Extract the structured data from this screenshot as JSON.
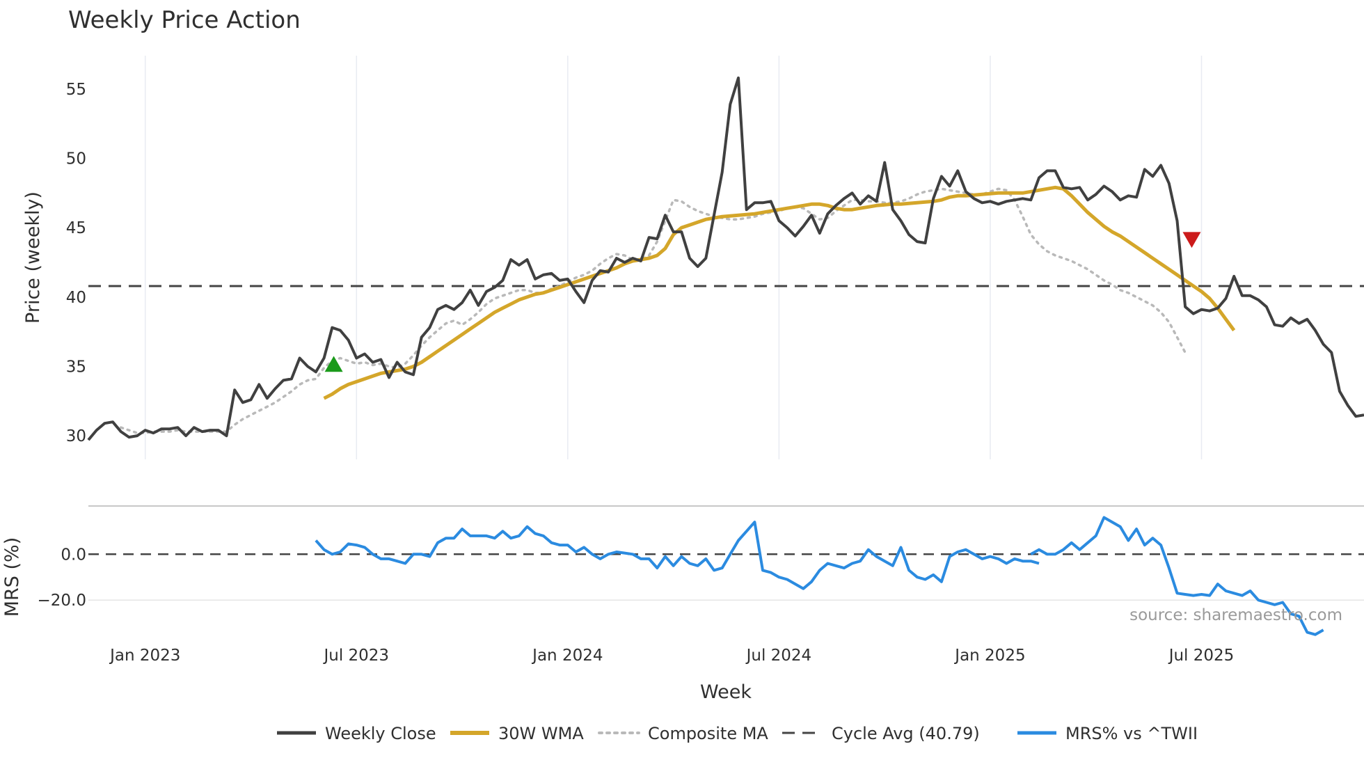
{
  "chart_data": {
    "title": "Weekly Price Action",
    "type": "line",
    "x_axis": {
      "label": "Week",
      "tick_labels": [
        "Jan 2023",
        "Jul 2023",
        "Jan 2024",
        "Jul 2024",
        "Jan 2025",
        "Jul 2025"
      ],
      "tick_weeks": [
        0,
        26,
        52,
        78,
        104,
        130
      ],
      "range_weeks": [
        -7,
        150
      ]
    },
    "price_panel": {
      "ylabel": "Price (weekly)",
      "y_ticks": [
        "30",
        "35",
        "40",
        "45",
        "50",
        "55"
      ],
      "y_tick_values": [
        30,
        35,
        40,
        45,
        50,
        55
      ],
      "ylim": [
        28.3,
        57.4
      ],
      "series": {
        "weekly_close": {
          "name": "Weekly Close",
          "color": "#404040",
          "start_week": -7,
          "values": [
            29.7,
            30.4,
            30.9,
            31.0,
            30.3,
            29.9,
            30.0,
            30.4,
            30.2,
            30.5,
            30.5,
            30.6,
            30.0,
            30.6,
            30.3,
            30.4,
            30.4,
            30.0,
            33.3,
            32.4,
            32.6,
            33.7,
            32.7,
            33.4,
            34.0,
            34.1,
            35.6,
            35.0,
            34.6,
            35.6,
            37.8,
            37.6,
            36.9,
            35.6,
            35.9,
            35.3,
            35.5,
            34.2,
            35.3,
            34.6,
            34.4,
            37.1,
            37.8,
            39.1,
            39.4,
            39.1,
            39.6,
            40.5,
            39.4,
            40.4,
            40.7,
            41.2,
            42.7,
            42.3,
            42.7,
            41.3,
            41.6,
            41.7,
            41.2,
            41.3,
            40.4,
            39.6,
            41.2,
            41.9,
            41.8,
            42.8,
            42.5,
            42.8,
            42.6,
            44.3,
            44.2,
            45.9,
            44.7,
            44.7,
            42.8,
            42.2,
            42.8,
            45.9,
            49.0,
            53.9,
            55.8,
            46.3,
            46.8,
            46.8,
            46.9,
            45.5,
            45.0,
            44.4,
            45.1,
            45.9,
            44.6,
            46.0,
            46.6,
            47.1,
            47.5,
            46.7,
            47.3,
            46.9,
            49.7,
            46.3,
            45.5,
            44.5,
            44.0,
            43.9,
            47.1,
            48.7,
            48.0,
            49.1,
            47.6,
            47.1,
            46.8,
            46.9,
            46.7,
            46.9,
            47.0,
            47.1,
            47.0,
            48.6,
            49.1,
            49.1,
            47.9,
            47.8,
            47.9,
            47.0,
            47.4,
            48.0,
            47.6,
            47.0,
            47.3,
            47.2,
            49.2,
            48.7,
            49.5,
            48.2,
            45.5,
            39.3,
            38.8,
            39.1,
            39.0,
            39.2,
            39.9,
            41.5,
            40.1,
            40.1,
            39.8,
            39.3,
            38.0,
            37.9,
            38.5,
            38.1,
            38.4,
            37.6,
            36.6,
            36.0,
            33.2,
            32.2,
            31.4,
            31.5
          ]
        },
        "wma_30w": {
          "name": "30W WMA",
          "color": "#d4a62a",
          "start_week": 22,
          "values": [
            32.7,
            33.0,
            33.4,
            33.7,
            33.9,
            34.1,
            34.3,
            34.5,
            34.6,
            34.7,
            34.8,
            35.0,
            35.3,
            35.7,
            36.1,
            36.5,
            36.9,
            37.3,
            37.7,
            38.1,
            38.5,
            38.9,
            39.2,
            39.5,
            39.8,
            40.0,
            40.2,
            40.3,
            40.5,
            40.7,
            40.9,
            41.1,
            41.3,
            41.5,
            41.7,
            41.9,
            42.1,
            42.4,
            42.6,
            42.7,
            42.8,
            43.0,
            43.5,
            44.5,
            45.0,
            45.2,
            45.4,
            45.6,
            45.7,
            45.8,
            45.85,
            45.9,
            45.95,
            46.0,
            46.1,
            46.2,
            46.3,
            46.4,
            46.5,
            46.6,
            46.7,
            46.7,
            46.6,
            46.4,
            46.3,
            46.3,
            46.4,
            46.5,
            46.6,
            46.65,
            46.7,
            46.7,
            46.75,
            46.8,
            46.85,
            46.9,
            47.0,
            47.2,
            47.3,
            47.3,
            47.35,
            47.4,
            47.45,
            47.5,
            47.5,
            47.5,
            47.5,
            47.6,
            47.7,
            47.8,
            47.9,
            47.8,
            47.3,
            46.7,
            46.1,
            45.6,
            45.1,
            44.7,
            44.4,
            44.0,
            43.6,
            43.2,
            42.8,
            42.4,
            42.0,
            41.6,
            41.2,
            40.8,
            40.4,
            39.9,
            39.2,
            38.4,
            37.6
          ]
        },
        "composite_ma": {
          "name": "Composite MA",
          "color": "#b9b9b9",
          "start_week": -3,
          "values": [
            30.6,
            30.4,
            30.2,
            30.2,
            30.3,
            30.3,
            30.3,
            30.4,
            30.3,
            30.3,
            30.3,
            30.3,
            30.3,
            30.3,
            30.8,
            31.2,
            31.5,
            31.8,
            32.1,
            32.4,
            32.8,
            33.2,
            33.7,
            34.0,
            34.1,
            34.9,
            35.4,
            35.6,
            35.4,
            35.2,
            35.3,
            35.1,
            35.2,
            35.0,
            34.9,
            35.2,
            35.8,
            36.5,
            37.1,
            37.6,
            38.1,
            38.3,
            38.0,
            38.4,
            38.9,
            39.5,
            39.9,
            40.1,
            40.3,
            40.5,
            40.5,
            40.3,
            40.3,
            40.6,
            40.8,
            41.1,
            41.4,
            41.6,
            41.9,
            42.4,
            42.8,
            43.1,
            43.0,
            42.7,
            42.7,
            43.0,
            44.0,
            45.5,
            47.0,
            46.9,
            46.5,
            46.2,
            46.0,
            45.8,
            45.7,
            45.6,
            45.6,
            45.7,
            45.8,
            46.0,
            46.1,
            46.2,
            46.4,
            46.5,
            46.4,
            46.0,
            45.6,
            45.7,
            46.2,
            46.6,
            47.0,
            47.0,
            46.9,
            46.9,
            46.8,
            46.8,
            46.9,
            47.1,
            47.4,
            47.6,
            47.7,
            47.8,
            47.7,
            47.6,
            47.5,
            47.4,
            47.4,
            47.6,
            47.8,
            47.7,
            47.0,
            45.8,
            44.5,
            43.8,
            43.3,
            43.0,
            42.8,
            42.6,
            42.3,
            42.0,
            41.6,
            41.2,
            40.9,
            40.5,
            40.3,
            40.0,
            39.7,
            39.4,
            38.9,
            38.2,
            37.1,
            36.0
          ]
        },
        "cycle_avg": {
          "name": "Cycle Avg (40.79)",
          "color": "#444444",
          "value": 40.79
        }
      },
      "markers": [
        {
          "type": "buy",
          "shape": "up-triangle",
          "color": "#1a9a1a",
          "week": 23.2,
          "price": 35.1
        },
        {
          "type": "sell",
          "shape": "down-triangle",
          "color": "#cc1b1b",
          "week": 128.8,
          "price": 44.2
        }
      ]
    },
    "mrs_panel": {
      "ylabel": "MRS (%)",
      "y_ticks": [
        "0.0",
        "−20.0"
      ],
      "y_tick_values": [
        0,
        -20
      ],
      "ylim": [
        -36,
        21
      ],
      "zero_line": 0,
      "series": {
        "mrs": {
          "name": "MRS% vs ^TWII",
          "color": "#2b8be0",
          "segments": [
            {
              "start_week": 21,
              "values": [
                6,
                2,
                0,
                1,
                4.5,
                4,
                3,
                0,
                -2,
                -2,
                -3,
                -4,
                0,
                0,
                -1,
                5,
                7,
                7,
                11,
                8,
                8,
                8,
                7,
                10,
                7,
                8,
                12,
                9,
                8,
                5,
                4,
                4,
                1,
                3,
                0,
                -2,
                0,
                1,
                0.5,
                0,
                -2,
                -2,
                -6,
                -1,
                -5,
                -1,
                -4,
                -5,
                -2,
                -7,
                -6,
                0,
                6,
                10,
                14,
                -7,
                -8,
                -10,
                -11,
                -13,
                -15,
                -12,
                -7,
                -4,
                -5,
                -6,
                -4,
                -3,
                2,
                -1,
                -3,
                -5,
                3,
                -7,
                -10,
                -11,
                -9,
                -12,
                -1,
                1,
                2,
                0,
                -2,
                -1,
                -2,
                -4,
                -2,
                -3,
                -3,
                -4
              ]
            },
            {
              "start_week": 109,
              "values": [
                0,
                2,
                0,
                0,
                2,
                5,
                2,
                5,
                8,
                16,
                14,
                12,
                6,
                11,
                4,
                7,
                4,
                -6,
                -17,
                -17.5,
                -18,
                -17.5,
                -18,
                -13,
                -16,
                -17,
                -18,
                -16,
                -20,
                -21,
                -22,
                -21,
                -26,
                -27,
                -34,
                -35,
                -33
              ]
            }
          ]
        }
      }
    },
    "source": "source: sharemaestro.com",
    "legend": [
      "Weekly Close",
      "30W WMA",
      "Composite MA",
      "Cycle Avg (40.79)",
      "MRS% vs ^TWII"
    ],
    "legend_placement": "bottom-center"
  }
}
